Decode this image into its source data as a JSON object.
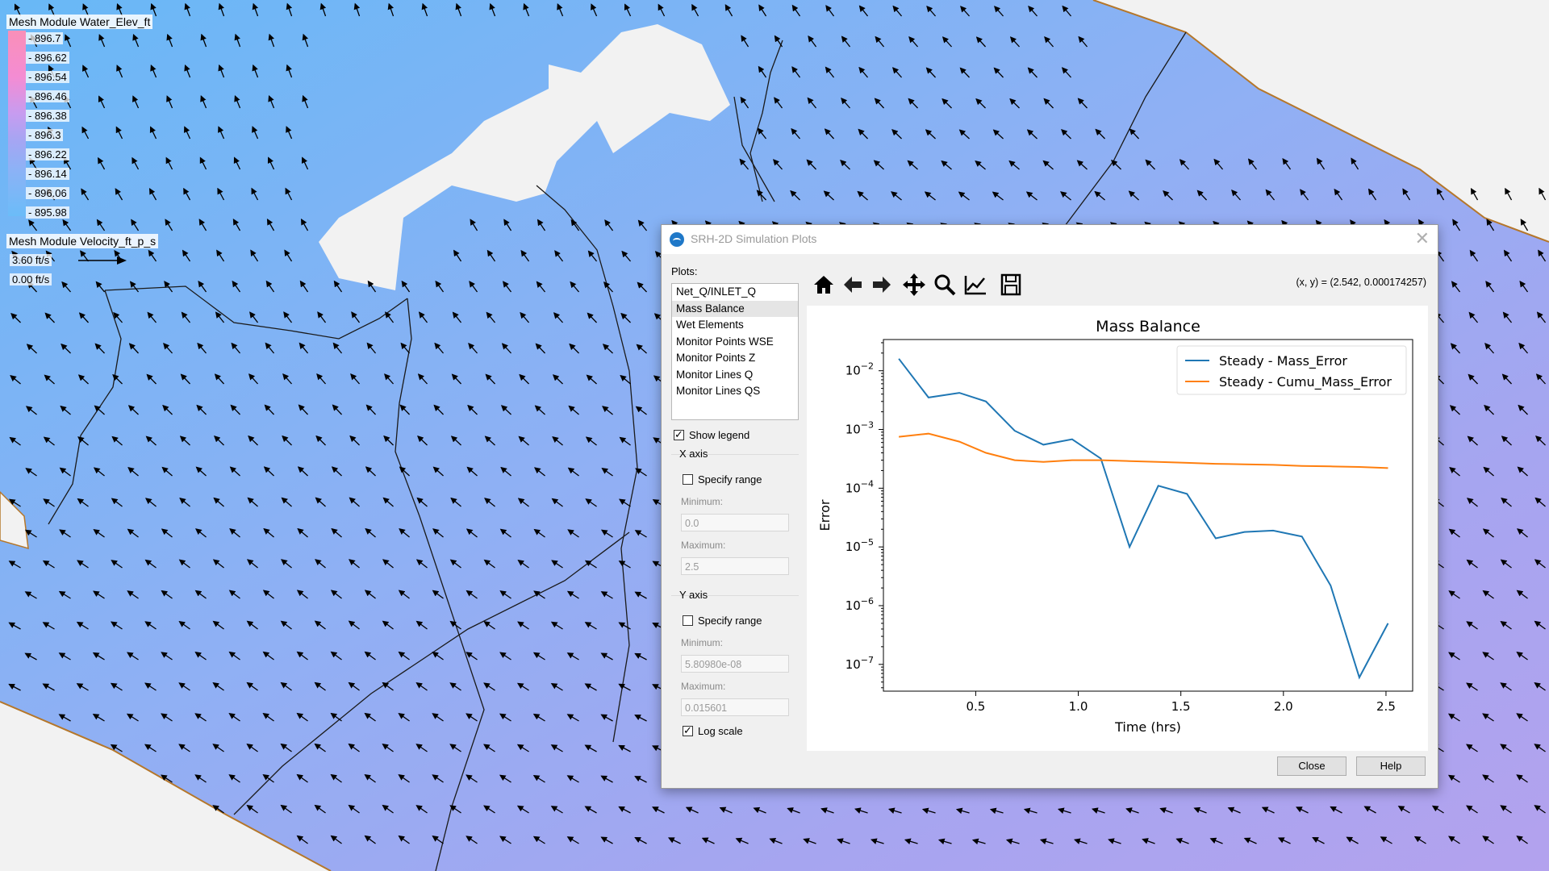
{
  "map": {
    "legend_elev_title": "Mesh Module Water_Elev_ft",
    "legend_elev_values": [
      "896.7",
      "896.62",
      "896.54",
      "896.46",
      "896.38",
      "896.3",
      "896.22",
      "896.14",
      "896.06",
      "895.98"
    ],
    "legend_vel_title": "Mesh Module Velocity_ft_p_s",
    "legend_vel_max": "3.60 ft/s",
    "legend_vel_min": "0.00 ft/s"
  },
  "dialog": {
    "title": "SRH-2D Simulation Plots",
    "plots_label": "Plots:",
    "plots": [
      "Net_Q/INLET_Q",
      "Mass Balance",
      "Wet Elements",
      "Monitor Points WSE",
      "Monitor Points Z",
      "Monitor Lines Q",
      "Monitor Lines QS"
    ],
    "selected_plot": "Mass Balance",
    "show_legend_label": "Show legend",
    "show_legend_checked": true,
    "x_axis": {
      "label": "X axis",
      "specify_range_label": "Specify range",
      "specify_range_checked": false,
      "min_label": "Minimum:",
      "min_value": "0.0",
      "max_label": "Maximum:",
      "max_value": "2.5"
    },
    "y_axis": {
      "label": "Y axis",
      "specify_range_label": "Specify range",
      "specify_range_checked": false,
      "min_label": "Minimum:",
      "min_value": "5.80980e-08",
      "max_label": "Maximum:",
      "max_value": "0.015601"
    },
    "log_scale_label": "Log scale",
    "log_scale_checked": true,
    "coords": "(x, y) = (2.542, 0.000174257)",
    "toolbar_icons": [
      "home-icon",
      "back-arrow-icon",
      "forward-arrow-icon",
      "pan-icon",
      "zoom-icon",
      "subplot-config-icon",
      "save-icon"
    ],
    "close_label": "Close",
    "help_label": "Help"
  },
  "chart_data": {
    "type": "line",
    "title": "Mass Balance",
    "xlabel": "Time (hrs)",
    "ylabel": "Error",
    "xlim": [
      0.05,
      2.63
    ],
    "ylim": [
      3.5e-08,
      0.034
    ],
    "yscale": "log",
    "xticks": [
      0.5,
      1.0,
      1.5,
      2.0,
      2.5
    ],
    "xtick_labels": [
      "0.5",
      "1.0",
      "1.5",
      "2.0",
      "2.5"
    ],
    "yticks": [
      1e-07,
      1e-06,
      1e-05,
      0.0001,
      0.001,
      0.01
    ],
    "ytick_labels": [
      [
        "10",
        "−7"
      ],
      [
        "10",
        "−6"
      ],
      [
        "10",
        "−5"
      ],
      [
        "10",
        "−4"
      ],
      [
        "10",
        "−3"
      ],
      [
        "10",
        "−2"
      ]
    ],
    "legend_position": "top-right",
    "grid": false,
    "series": [
      {
        "name": "Steady - Mass_Error",
        "color": "#1f77b4",
        "x": [
          0.125,
          0.27,
          0.42,
          0.55,
          0.69,
          0.83,
          0.97,
          1.11,
          1.25,
          1.39,
          1.53,
          1.67,
          1.81,
          1.95,
          2.09,
          2.23,
          2.37,
          2.51
        ],
        "y": [
          0.016,
          0.0035,
          0.0042,
          0.003,
          0.00095,
          0.00055,
          0.00068,
          0.00032,
          1e-05,
          0.00011,
          8e-05,
          1.4e-05,
          1.8e-05,
          1.9e-05,
          1.5e-05,
          2.2e-06,
          6e-08,
          5e-07
        ]
      },
      {
        "name": "Steady - Cumu_Mass_Error",
        "color": "#ff7f0e",
        "x": [
          0.125,
          0.27,
          0.42,
          0.55,
          0.69,
          0.83,
          0.97,
          1.11,
          1.25,
          1.39,
          1.53,
          1.67,
          1.81,
          1.95,
          2.09,
          2.23,
          2.37,
          2.51
        ],
        "y": [
          0.00075,
          0.00085,
          0.00062,
          0.0004,
          0.0003,
          0.00028,
          0.0003,
          0.0003,
          0.00029,
          0.00028,
          0.00027,
          0.00026,
          0.000255,
          0.00025,
          0.00024,
          0.000235,
          0.00023,
          0.00022
        ]
      }
    ]
  }
}
